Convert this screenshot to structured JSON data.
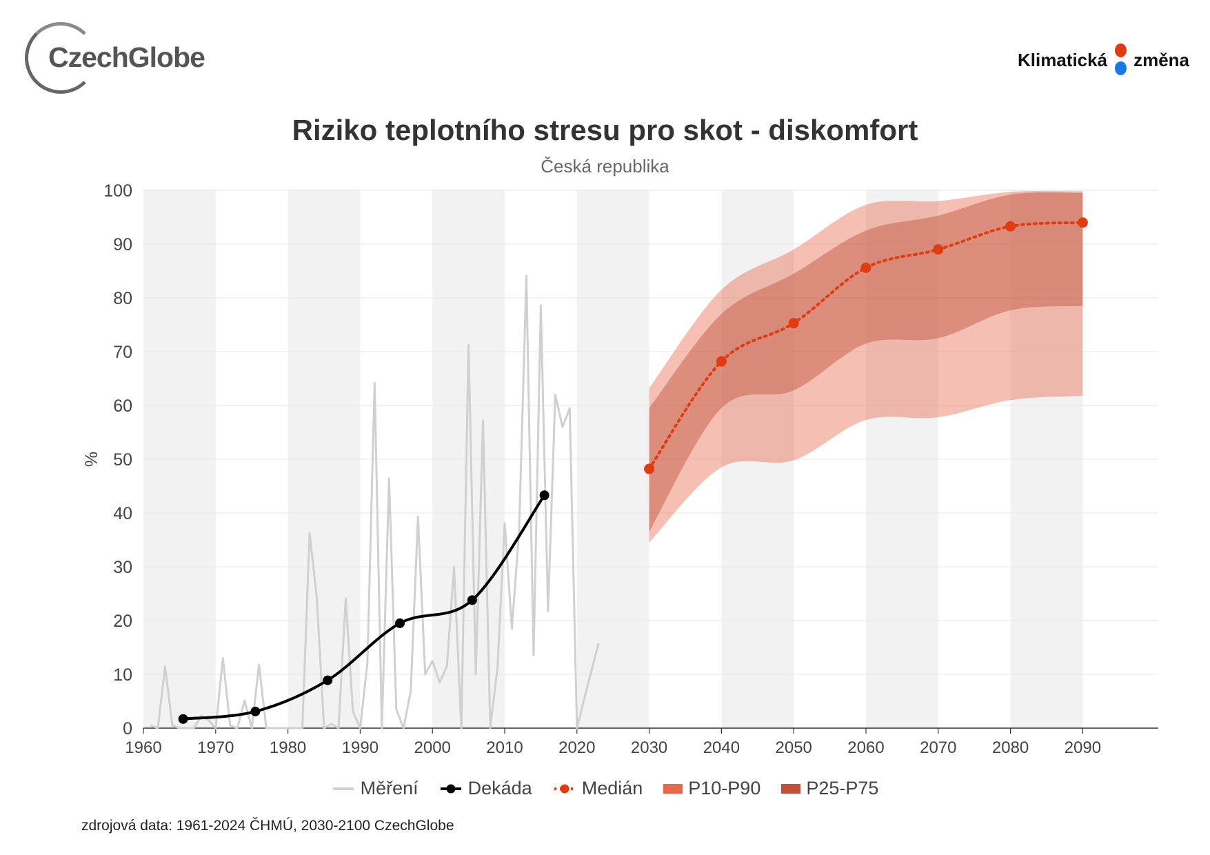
{
  "logos": {
    "left": "CzechGlobe",
    "right_a": "Klimatická",
    "right_b": "změna"
  },
  "source": "zdrojová data: 1961-2024 ČHMÚ, 2030-2100 CzechGlobe",
  "colors": {
    "measurement": "#d0d0d0",
    "decade": "#000000",
    "median": "#e03c10",
    "p10_p90": "#e8694a",
    "p25_p75": "#c0503a",
    "band_bg": "#f2f2f2",
    "grid": "#e6e6e6"
  },
  "chart_data": {
    "type": "line",
    "title": "Riziko teplotního stresu pro skot - diskomfort",
    "subtitle": "Česká republika",
    "ylabel": "%",
    "xlabel": "",
    "xlim": [
      1960,
      2100
    ],
    "ylim": [
      0,
      100
    ],
    "xticks": [
      1960,
      1970,
      1980,
      1990,
      2000,
      2010,
      2020,
      2030,
      2040,
      2050,
      2060,
      2070,
      2080,
      2090
    ],
    "yticks": [
      0,
      10,
      20,
      30,
      40,
      50,
      60,
      70,
      80,
      90,
      100
    ],
    "alternating_bands": [
      [
        1960,
        1970
      ],
      [
        1980,
        1990
      ],
      [
        2000,
        2010
      ],
      [
        2020,
        2030
      ],
      [
        2040,
        2050
      ],
      [
        2060,
        2070
      ],
      [
        2080,
        2090
      ]
    ],
    "legend": [
      "Měření",
      "Dekáda",
      "Medián",
      "P10-P90",
      "P25-P75"
    ],
    "series": [
      {
        "name": "Měření",
        "type": "line",
        "x": [
          1961,
          1962,
          1963,
          1964,
          1965,
          1966,
          1967,
          1968,
          1969,
          1970,
          1971,
          1972,
          1973,
          1974,
          1975,
          1976,
          1977,
          1978,
          1979,
          1980,
          1981,
          1982,
          1983,
          1984,
          1985,
          1986,
          1987,
          1988,
          1989,
          1990,
          1991,
          1992,
          1993,
          1994,
          1995,
          1996,
          1997,
          1998,
          1999,
          2000,
          2001,
          2002,
          2003,
          2004,
          2005,
          2006,
          2007,
          2008,
          2009,
          2010,
          2011,
          2012,
          2013,
          2014,
          2015,
          2016,
          2017,
          2018,
          2019,
          2020,
          2021,
          2022,
          2023
        ],
        "y": [
          0.5,
          0,
          11.5,
          0.5,
          0,
          0,
          0,
          2.3,
          1.5,
          0,
          13,
          0.5,
          0,
          5.1,
          0,
          11.8,
          0,
          0,
          0,
          0,
          0,
          0,
          36.3,
          24.2,
          0,
          0.8,
          0,
          24.1,
          3.1,
          0,
          12.1,
          64.2,
          0,
          46.4,
          3.5,
          0,
          6.9,
          39.3,
          10,
          12.5,
          8.5,
          11.5,
          30,
          0,
          71.3,
          10,
          57.2,
          0,
          11.2,
          38.1,
          18.5,
          36.8,
          84.1,
          13.6,
          78.6,
          21.7,
          62,
          56,
          59.5,
          0,
          5.4,
          10.6,
          15.8
        ]
      },
      {
        "name": "Dekáda",
        "type": "line-marker",
        "x": [
          1965.5,
          1975.5,
          1985.5,
          1995.5,
          2005.5,
          2015.5
        ],
        "y": [
          1.7,
          3.1,
          8.9,
          19.5,
          23.8,
          43.3
        ]
      },
      {
        "name": "Medián",
        "type": "dotted-line-marker",
        "x": [
          2030,
          2040,
          2050,
          2060,
          2070,
          2080,
          2090
        ],
        "y": [
          48.2,
          68.2,
          75.3,
          85.6,
          89,
          93.3,
          94
        ]
      },
      {
        "name": "P10-P90",
        "type": "band",
        "x": [
          2030,
          2040,
          2050,
          2060,
          2070,
          2080,
          2090
        ],
        "low": [
          34.5,
          48.5,
          49.8,
          57.3,
          57.8,
          61,
          61.8
        ],
        "high": [
          63.2,
          81.5,
          89,
          97.3,
          98,
          99.7,
          99.8
        ]
      },
      {
        "name": "P25-P75",
        "type": "band",
        "x": [
          2030,
          2040,
          2050,
          2060,
          2070,
          2080,
          2090
        ],
        "low": [
          36.5,
          59.5,
          62.8,
          71.5,
          72.5,
          77.7,
          78.5
        ],
        "high": [
          59.5,
          77,
          84.5,
          92.5,
          95.3,
          99.2,
          99.5
        ]
      }
    ]
  }
}
